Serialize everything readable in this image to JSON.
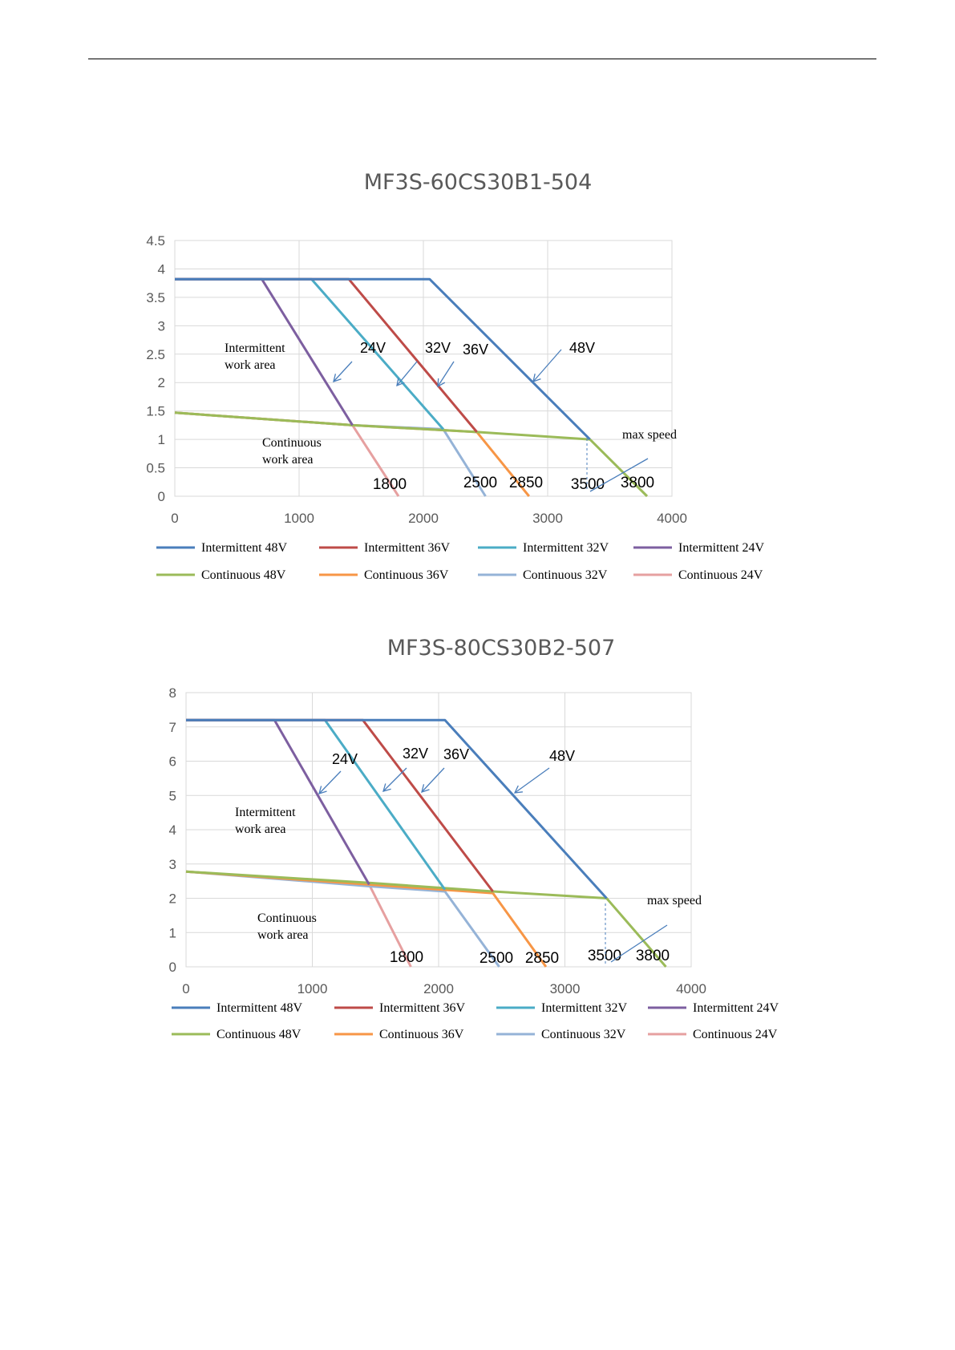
{
  "page": {
    "header_rule": true
  },
  "chart_data": [
    {
      "type": "line",
      "title": "MF3S-60CS30B1-504",
      "xlim": [
        0,
        4000
      ],
      "ylim": [
        0,
        4.5
      ],
      "xticks": [
        "0",
        "1000",
        "2000",
        "3000",
        "4000"
      ],
      "yticks": [
        "0",
        "0.5",
        "1",
        "1.5",
        "2",
        "2.5",
        "3",
        "3.5",
        "4",
        "4.5"
      ],
      "grid": true,
      "legend_position": "bottom",
      "series": [
        {
          "name": "Intermittent 48V",
          "color": "#4a7ebb",
          "x": [
            0,
            2050,
            3340
          ],
          "y": [
            3.82,
            3.82,
            1.0
          ]
        },
        {
          "name": "Intermittent 36V",
          "color": "#be4b48",
          "x": [
            0,
            1400,
            2430
          ],
          "y": [
            3.82,
            3.82,
            1.13
          ]
        },
        {
          "name": "Intermittent 32V",
          "color": "#4bacc6",
          "x": [
            0,
            1100,
            2160
          ],
          "y": [
            3.82,
            3.82,
            1.18
          ]
        },
        {
          "name": "Intermittent 24V",
          "color": "#7d5fa0",
          "x": [
            0,
            700,
            1430
          ],
          "y": [
            3.82,
            3.82,
            1.25
          ]
        },
        {
          "name": "Continuous 48V",
          "color": "#9bbb59",
          "x": [
            0,
            1430,
            2430,
            3340,
            3800
          ],
          "y": [
            1.47,
            1.25,
            1.13,
            1.0,
            0
          ]
        },
        {
          "name": "Continuous 36V",
          "color": "#f79646",
          "x": [
            0,
            1430,
            2430,
            2850
          ],
          "y": [
            1.47,
            1.25,
            1.13,
            0
          ]
        },
        {
          "name": "Continuous 32V",
          "color": "#95b3d7",
          "x": [
            0,
            1430,
            2160,
            2500
          ],
          "y": [
            1.47,
            1.25,
            1.18,
            0
          ]
        },
        {
          "name": "Continuous 24V",
          "color": "#e6a0a0",
          "x": [
            0,
            1430,
            1800
          ],
          "y": [
            1.47,
            1.25,
            0
          ]
        }
      ],
      "annotations": {
        "intermittent": [
          "Intermittent",
          "work area"
        ],
        "continuous": [
          "Continuous",
          "work area"
        ],
        "volt_24": "24V",
        "volt_32": "32V",
        "volt_36": "36V",
        "volt_48": "48V",
        "max_speed": "max speed",
        "speed_1800": "1800",
        "speed_2500": "2500",
        "speed_2850": "2850",
        "speed_3500": "3500",
        "speed_3800": "3800"
      }
    },
    {
      "type": "line",
      "title": "MF3S-80CS30B2-507",
      "xlim": [
        0,
        4000
      ],
      "ylim": [
        0,
        8
      ],
      "xticks": [
        "0",
        "1000",
        "2000",
        "3000",
        "4000"
      ],
      "yticks": [
        "0",
        "1",
        "2",
        "3",
        "4",
        "5",
        "6",
        "7",
        "8"
      ],
      "grid": true,
      "legend_position": "bottom",
      "series": [
        {
          "name": "Intermittent 48V",
          "color": "#4a7ebb",
          "x": [
            0,
            2050,
            3330
          ],
          "y": [
            7.2,
            7.2,
            2.0
          ]
        },
        {
          "name": "Intermittent 36V",
          "color": "#be4b48",
          "x": [
            0,
            1400,
            2430
          ],
          "y": [
            7.2,
            7.2,
            2.2
          ]
        },
        {
          "name": "Intermittent 32V",
          "color": "#4bacc6",
          "x": [
            0,
            1100,
            2050
          ],
          "y": [
            7.2,
            7.2,
            2.25
          ]
        },
        {
          "name": "Intermittent 24V",
          "color": "#7d5fa0",
          "x": [
            0,
            700,
            1450
          ],
          "y": [
            7.2,
            7.2,
            2.4
          ]
        },
        {
          "name": "Continuous 48V",
          "color": "#9bbb59",
          "x": [
            0,
            1450,
            2430,
            3330,
            3800
          ],
          "y": [
            2.78,
            2.45,
            2.2,
            2.0,
            0
          ]
        },
        {
          "name": "Continuous 36V",
          "color": "#f79646",
          "x": [
            0,
            1450,
            2430,
            2850
          ],
          "y": [
            2.78,
            2.4,
            2.15,
            0
          ]
        },
        {
          "name": "Continuous 32V",
          "color": "#95b3d7",
          "x": [
            0,
            1450,
            2050,
            2480
          ],
          "y": [
            2.78,
            2.35,
            2.2,
            0
          ]
        },
        {
          "name": "Continuous 24V",
          "color": "#e6a0a0",
          "x": [
            0,
            1450,
            1780
          ],
          "y": [
            2.78,
            2.4,
            0
          ]
        }
      ],
      "annotations": {
        "intermittent": [
          "Intermittent",
          "work area"
        ],
        "continuous": [
          "Continuous",
          "work area"
        ],
        "volt_24": "24V",
        "volt_32": "32V",
        "volt_36": "36V",
        "volt_48": "48V",
        "max_speed": "max speed",
        "speed_1800": "1800",
        "speed_2500": "2500",
        "speed_2850": "2850",
        "speed_3500": "3500",
        "speed_3800": "3800"
      }
    }
  ]
}
